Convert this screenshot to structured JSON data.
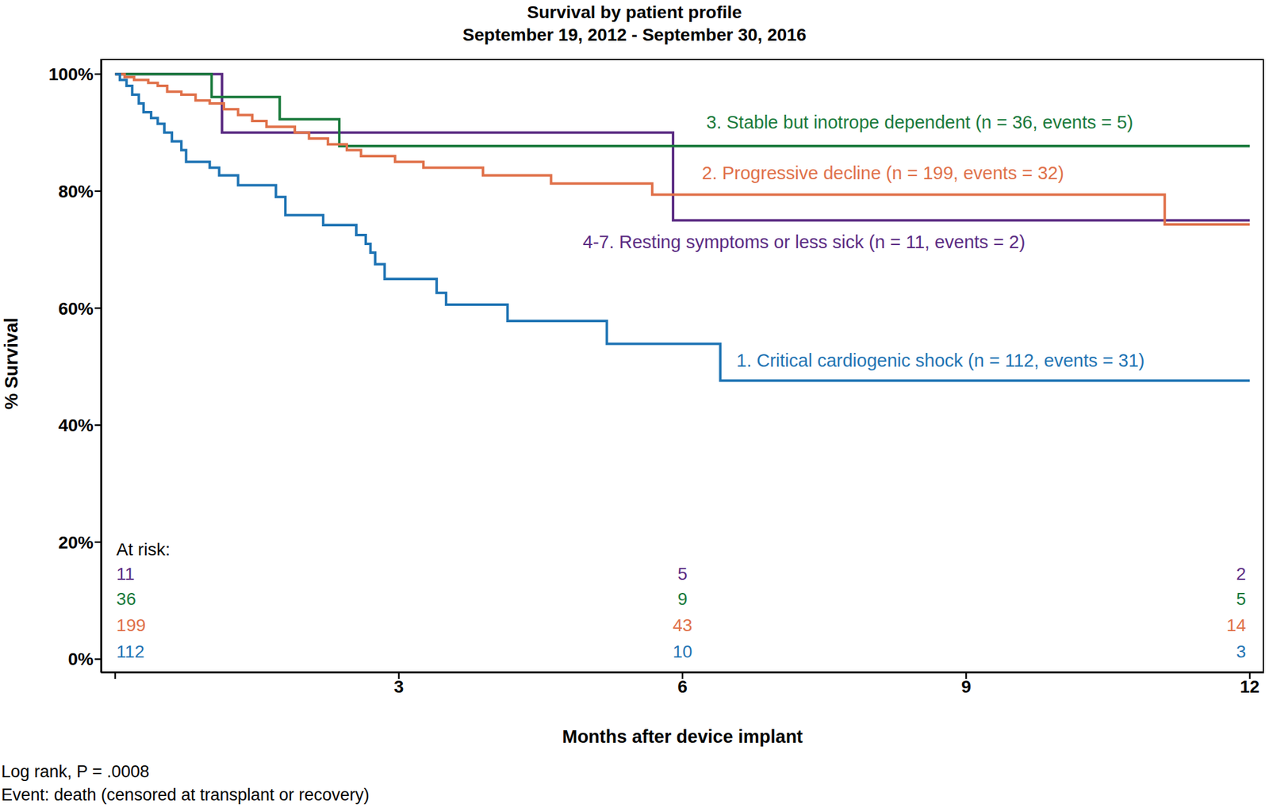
{
  "chart_data": {
    "type": "line",
    "title": "Survival by patient profile",
    "subtitle": "September 19, 2012 - September 30, 2016",
    "x_label": "Months after device implant",
    "y_label": "% Survival",
    "xlim": [
      -0.15,
      12.15
    ],
    "xticks": [
      0,
      3,
      6,
      9,
      12
    ],
    "ylim": [
      -2.3,
      102.6
    ],
    "yticks": [
      {
        "value": 0,
        "label": "0%"
      },
      {
        "value": 20,
        "label": "20%"
      },
      {
        "value": 40,
        "label": "40%"
      },
      {
        "value": 60,
        "label": "60%"
      },
      {
        "value": 80,
        "label": "80%"
      },
      {
        "value": 100,
        "label": "100%"
      }
    ],
    "grid": false,
    "line_style": "step",
    "series": [
      {
        "name": "4-7. Resting symptoms or less sick (n = 11, events = 2)",
        "color": "#5b2c83",
        "x": [
          0,
          1.13,
          5.9,
          12
        ],
        "values": [
          100,
          90,
          75,
          75
        ],
        "at_risk": [
          11,
          5,
          2
        ]
      },
      {
        "name": "3. Stable but inotrope dependent (n = 36, events = 5)",
        "color": "#1a7a3c",
        "x": [
          0,
          1.02,
          1.74,
          2.37,
          12
        ],
        "values": [
          100,
          96.1,
          92.3,
          87.7,
          87.7
        ],
        "at_risk": [
          36,
          9,
          5
        ]
      },
      {
        "name": "2. Progressive decline (n = 199, events = 32)",
        "color": "#e0714a",
        "x": [
          0,
          0.1,
          0.2,
          0.35,
          0.45,
          0.55,
          0.7,
          0.85,
          1.0,
          1.15,
          1.3,
          1.45,
          1.6,
          1.9,
          2.05,
          2.25,
          2.45,
          2.6,
          2.96,
          3.26,
          3.89,
          4.61,
          5.68,
          11.1,
          12
        ],
        "values": [
          100,
          99.5,
          99,
          98.5,
          98,
          97,
          96.5,
          95.5,
          95,
          94,
          93,
          92,
          91,
          90,
          89,
          88,
          87,
          86,
          85,
          84,
          82.7,
          81.3,
          79.4,
          74.3,
          74.3
        ],
        "at_risk": [
          199,
          43,
          14
        ]
      },
      {
        "name": "1. Critical cardiogenic shock (n = 112, events = 31)",
        "color": "#1f74b4",
        "x": [
          0,
          0.05,
          0.12,
          0.18,
          0.25,
          0.3,
          0.38,
          0.45,
          0.52,
          0.6,
          0.7,
          0.75,
          1.0,
          1.1,
          1.3,
          1.7,
          1.8,
          2.2,
          2.55,
          2.65,
          2.7,
          2.75,
          2.85,
          3.4,
          3.5,
          4.15,
          5.2,
          6.4,
          12
        ],
        "values": [
          100,
          99,
          98,
          96.5,
          95,
          93.5,
          92.5,
          91.5,
          90,
          88.5,
          87,
          85,
          84,
          82.7,
          81,
          79,
          75.9,
          74.2,
          72.5,
          71,
          69.5,
          67.5,
          65,
          62.6,
          60.6,
          57.8,
          53.9,
          47.6,
          47.6
        ],
        "at_risk": [
          112,
          10,
          3
        ]
      }
    ],
    "at_risk_label": "At risk:",
    "at_risk_x": [
      0,
      6,
      12
    ],
    "notes": [
      "Log rank, P = .0008",
      "Event: death (censored at transplant or recovery)"
    ]
  }
}
